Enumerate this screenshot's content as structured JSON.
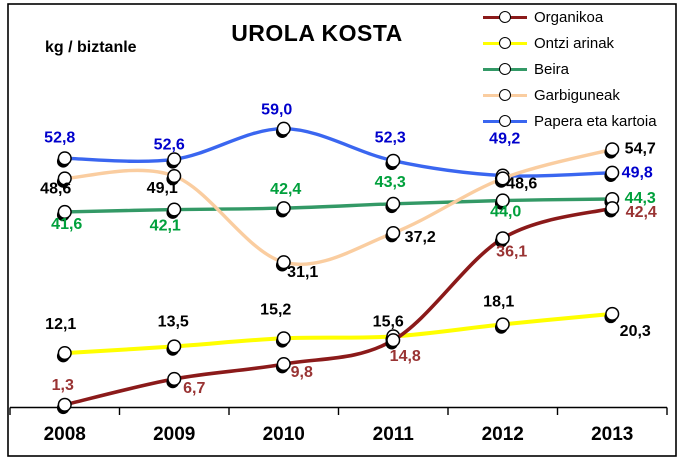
{
  "frame": {
    "background": "#FFFFFF",
    "border_color": "#000000"
  },
  "chart_data": {
    "type": "line",
    "smooth": true,
    "title": "UROLA KOSTA",
    "ylabel": "kg / biztanle",
    "xlabel": "",
    "categories": [
      "2008",
      "2009",
      "2010",
      "2011",
      "2012",
      "2013"
    ],
    "ylim": [
      0,
      65
    ],
    "grid": false,
    "y_axis_visible": false,
    "legend_position": "top-right",
    "decimal_separator": ",",
    "marker": "open-circle-with-shadow",
    "series": [
      {
        "name": "Organikoa",
        "color": "#8B1A1A",
        "label_color": "#993333",
        "values": [
          1.3,
          6.7,
          9.8,
          14.8,
          36.1,
          42.4
        ],
        "label_offsets": [
          [
            -2,
            -15
          ],
          [
            20,
            14
          ],
          [
            18,
            13
          ],
          [
            12,
            21
          ],
          [
            9,
            18
          ],
          [
            29,
            9
          ]
        ]
      },
      {
        "name": "Ontzi arinak",
        "color": "#FFFF00",
        "label_color": "#000000",
        "values": [
          12.1,
          13.5,
          15.2,
          15.6,
          18.1,
          20.3
        ],
        "label_offsets": [
          [
            -4,
            -24
          ],
          [
            -1,
            -20
          ],
          [
            -8,
            -24
          ],
          [
            -5,
            -10
          ],
          [
            -4,
            -18
          ],
          [
            23,
            22
          ]
        ]
      },
      {
        "name": "Beira",
        "color": "#339966",
        "label_color": "#00A03C",
        "values": [
          41.6,
          42.1,
          42.4,
          43.3,
          44.0,
          44.3
        ],
        "label_offsets": [
          [
            2,
            17
          ],
          [
            -9,
            21
          ],
          [
            2,
            -14
          ],
          [
            -3,
            -17
          ],
          [
            3,
            16
          ],
          [
            28,
            4
          ]
        ]
      },
      {
        "name": "Garbiguneak",
        "color": "#FACDA0",
        "label_color": "#000000",
        "values": [
          48.6,
          49.1,
          31.1,
          37.2,
          48.6,
          54.7
        ],
        "label_offsets": [
          [
            -9,
            15
          ],
          [
            -12,
            17
          ],
          [
            19,
            15
          ],
          [
            27,
            9
          ],
          [
            19,
            10
          ],
          [
            28,
            4
          ]
        ]
      },
      {
        "name": "Papera eta kartoia",
        "color": "#3A66F0",
        "label_color": "#0000CC",
        "values": [
          52.8,
          52.6,
          59.0,
          52.3,
          49.2,
          49.8
        ],
        "label_offsets": [
          [
            -5,
            -16
          ],
          [
            -5,
            -10
          ],
          [
            -7,
            -14
          ],
          [
            -3,
            -18
          ],
          [
            2,
            -32
          ],
          [
            25,
            5
          ]
        ]
      }
    ],
    "draw_order": [
      1,
      2,
      4,
      3,
      0
    ]
  }
}
